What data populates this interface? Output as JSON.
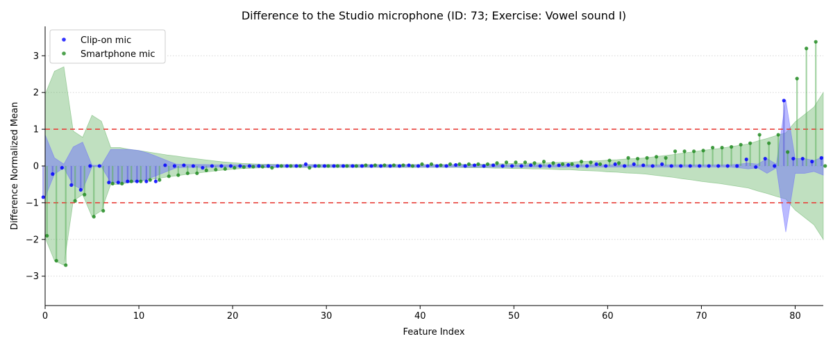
{
  "chart_data": {
    "type": "scatter",
    "title": "Difference to the Studio microphone (ID: 73; Exercise: Vowel sound I)",
    "xlabel": "Feature Index",
    "ylabel": "Difference Normalized Mean",
    "xlim": [
      0,
      83
    ],
    "ylim": [
      -3.8,
      3.8
    ],
    "xticks": [
      0,
      10,
      20,
      30,
      40,
      50,
      60,
      70,
      80
    ],
    "yticks": [
      -3,
      -2,
      -1,
      0,
      1,
      2,
      3
    ],
    "grid": "horizontal dotted",
    "reference_lines": [
      1,
      -1
    ],
    "legend_position": "top-left",
    "colors": {
      "clip_on": "#0000ff",
      "smartphone": "#228b22",
      "clip_on_band": "#6666ff",
      "smartphone_band": "#5aae5a",
      "reference": "#e8403a"
    },
    "series": [
      {
        "name": "Clip-on mic",
        "color": "#0000ff",
        "offset": -0.2,
        "values": [
          -0.85,
          -0.22,
          -0.05,
          -0.52,
          -0.65,
          0.0,
          0.0,
          -0.45,
          -0.45,
          -0.42,
          -0.42,
          -0.42,
          -0.42,
          0.02,
          0.0,
          0.02,
          0.0,
          -0.05,
          0.0,
          0.0,
          0.0,
          0.0,
          0.0,
          0.0,
          0.0,
          0.0,
          0.0,
          0.0,
          0.05,
          0.0,
          0.0,
          0.0,
          0.0,
          0.0,
          0.0,
          0.0,
          0.0,
          0.0,
          0.0,
          0.02,
          0.0,
          0.0,
          0.0,
          0.0,
          0.03,
          0.0,
          0.02,
          0.0,
          0.02,
          0.0,
          0.0,
          0.0,
          0.02,
          0.0,
          0.0,
          0.02,
          0.03,
          0.0,
          0.0,
          0.05,
          0.0,
          0.05,
          0.0,
          0.05,
          0.02,
          0.0,
          0.05,
          0.0,
          0.0,
          0.0,
          0.0,
          0.0,
          0.0,
          0.0,
          0.0,
          0.18,
          -0.03,
          0.2,
          0.0,
          1.78,
          0.2,
          0.2,
          0.12,
          0.22
        ],
        "band": [
          0.85,
          0.22,
          0.05,
          0.52,
          0.65,
          0.02,
          0.02,
          0.45,
          0.45,
          0.45,
          0.42,
          0.35,
          0.25,
          0.15,
          0.05,
          0.04,
          0.04,
          0.04,
          0.03,
          0.03,
          0.03,
          0.03,
          0.03,
          0.03,
          0.03,
          0.03,
          0.03,
          0.03,
          0.03,
          0.03,
          0.03,
          0.03,
          0.03,
          0.03,
          0.03,
          0.03,
          0.03,
          0.03,
          0.03,
          0.03,
          0.03,
          0.03,
          0.03,
          0.03,
          0.03,
          0.03,
          0.03,
          0.03,
          0.03,
          0.03,
          0.03,
          0.03,
          0.03,
          0.03,
          0.03,
          0.03,
          0.03,
          0.03,
          0.03,
          0.03,
          0.03,
          0.03,
          0.03,
          0.03,
          0.03,
          0.03,
          0.03,
          0.03,
          0.03,
          0.03,
          0.03,
          0.03,
          0.03,
          0.03,
          0.05,
          0.08,
          0.05,
          0.2,
          0.05,
          1.8,
          0.2,
          0.2,
          0.15,
          0.25
        ]
      },
      {
        "name": "Smartphone mic",
        "color": "#228b22",
        "offset": 0.2,
        "values": [
          -1.9,
          -2.58,
          -2.7,
          -0.95,
          -0.78,
          -1.38,
          -1.22,
          -0.48,
          -0.48,
          -0.42,
          -0.42,
          -0.38,
          -0.38,
          -0.28,
          -0.25,
          -0.2,
          -0.2,
          -0.12,
          -0.1,
          -0.08,
          -0.05,
          -0.03,
          -0.02,
          -0.02,
          -0.05,
          0.0,
          0.0,
          0.0,
          -0.05,
          0.0,
          0.0,
          0.0,
          0.0,
          0.0,
          0.02,
          0.02,
          0.02,
          0.02,
          0.02,
          0.0,
          0.05,
          0.05,
          0.02,
          0.05,
          0.05,
          0.05,
          0.05,
          0.05,
          0.08,
          0.1,
          0.1,
          0.1,
          0.08,
          0.12,
          0.08,
          0.05,
          0.05,
          0.12,
          0.1,
          0.05,
          0.15,
          0.08,
          0.22,
          0.2,
          0.22,
          0.25,
          0.22,
          0.4,
          0.4,
          0.4,
          0.42,
          0.5,
          0.5,
          0.52,
          0.58,
          0.62,
          0.85,
          0.62,
          0.85,
          0.38,
          2.38,
          3.2,
          3.38,
          0.0
        ],
        "band": [
          1.95,
          2.58,
          2.7,
          0.95,
          0.78,
          1.38,
          1.22,
          0.5,
          0.5,
          0.45,
          0.42,
          0.38,
          0.34,
          0.3,
          0.27,
          0.23,
          0.2,
          0.17,
          0.14,
          0.11,
          0.09,
          0.07,
          0.06,
          0.05,
          0.05,
          0.04,
          0.04,
          0.04,
          0.04,
          0.04,
          0.04,
          0.04,
          0.04,
          0.04,
          0.04,
          0.04,
          0.04,
          0.04,
          0.04,
          0.04,
          0.04,
          0.04,
          0.04,
          0.04,
          0.04,
          0.05,
          0.05,
          0.05,
          0.06,
          0.06,
          0.07,
          0.07,
          0.08,
          0.08,
          0.09,
          0.1,
          0.1,
          0.12,
          0.13,
          0.14,
          0.16,
          0.17,
          0.19,
          0.2,
          0.22,
          0.25,
          0.28,
          0.31,
          0.35,
          0.38,
          0.42,
          0.45,
          0.48,
          0.52,
          0.56,
          0.6,
          0.68,
          0.75,
          0.83,
          0.9,
          1.2,
          1.4,
          1.6,
          2.0
        ]
      }
    ]
  }
}
